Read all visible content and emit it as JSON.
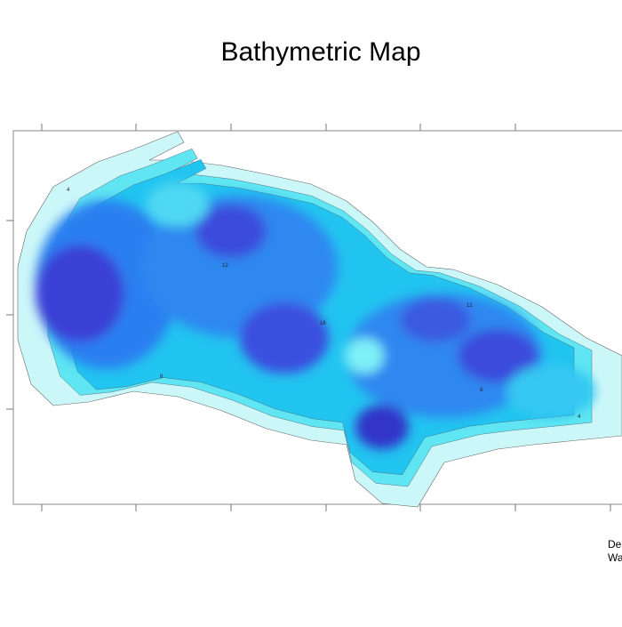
{
  "title": "Bathymetric Map",
  "footer": {
    "lines": [
      "De",
      "Wa"
    ]
  },
  "contour_labels": [
    {
      "label": "4"
    },
    {
      "label": "8"
    },
    {
      "label": "12"
    },
    {
      "label": "16"
    },
    {
      "label": "12"
    },
    {
      "label": "8"
    },
    {
      "label": "4"
    }
  ]
}
